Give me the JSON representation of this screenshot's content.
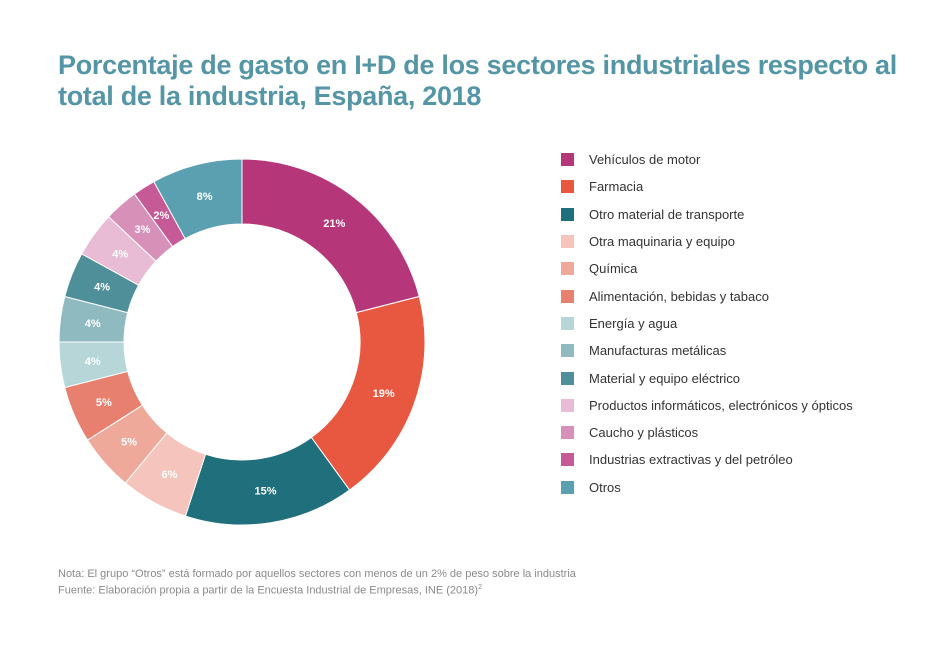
{
  "title": {
    "line1": "Porcentaje de gasto en I+D de los sectores industriales respecto al",
    "line2": "total de la industria, España, 2018"
  },
  "chart_data": {
    "type": "pie",
    "title": "Porcentaje de gasto en I+D de los sectores industriales respecto al total de la industria, España, 2018",
    "categories": [
      "Vehículos de motor",
      "Farmacia",
      "Otro material de transporte",
      "Otra maquinaria y equipo",
      "Química",
      "Alimentación, bebidas y tabaco",
      "Energía y agua",
      "Manufacturas metálicas",
      "Material y equipo eléctrico",
      "Productos informáticos, electrónicos y ópticos",
      "Caucho y plásticos",
      "Industrias extractivas y del petróleo",
      "Otros"
    ],
    "values": [
      21,
      19,
      15,
      6,
      5,
      5,
      4,
      4,
      4,
      4,
      3,
      2,
      8
    ],
    "labels": [
      "21%",
      "19%",
      "15%",
      "6%",
      "5%",
      "5%",
      "4%",
      "4%",
      "4%",
      "4%",
      "3%",
      "2%",
      "8%"
    ],
    "colors": [
      "#b5377a",
      "#e8573f",
      "#1f6f7c",
      "#f5c4bc",
      "#efa99a",
      "#e8806f",
      "#b6d6d8",
      "#8fbac0",
      "#4e8f9a",
      "#e8bcd4",
      "#d791b8",
      "#c65a96",
      "#5aa0b0"
    ],
    "donut": true,
    "legend_position": "right"
  },
  "notes": {
    "nota": "Nota: El grupo “Otros” está formado por aquellos sectores con menos de un 2% de peso sobre la industria",
    "fuente": "Fuente: Elaboración propia a partir de la Encuesta Industrial de Empresas, INE (2018)",
    "superscript": "2"
  }
}
